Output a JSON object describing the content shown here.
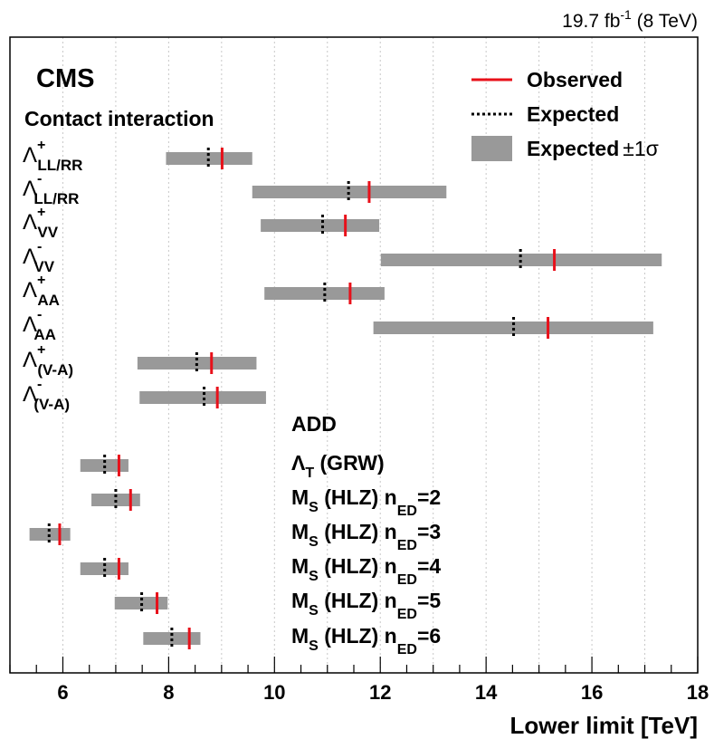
{
  "chart_data": {
    "type": "bar",
    "title": "",
    "header_text": "19.7 fb",
    "header_sup": "-1",
    "header_suffix": " (8 TeV)",
    "experiment_label": "CMS",
    "xlabel": "Lower limit [TeV]",
    "xlim": [
      5,
      18
    ],
    "x_ticks": [
      6,
      8,
      10,
      12,
      14,
      16,
      18
    ],
    "grid": "vertical-dotted",
    "legend_position": "top-right",
    "legend": [
      {
        "label": "Observed",
        "style": "solid",
        "color": "#e8101a"
      },
      {
        "label": "Expected",
        "style": "dashed",
        "color": "#000000"
      },
      {
        "label": "Expected",
        "suffix": "±1σ",
        "style": "band",
        "color": "#999999"
      }
    ],
    "groups": [
      {
        "title": "Contact interaction",
        "entries": [
          {
            "symbol": "Λ",
            "sup": "+",
            "sub": "LL/RR",
            "band": [
              7.95,
              9.58
            ],
            "expected": 8.75,
            "observed": 9.01
          },
          {
            "symbol": "Λ",
            "sup": "-",
            "sub": "LL/RR",
            "band": [
              9.58,
              13.25
            ],
            "expected": 11.4,
            "observed": 11.79
          },
          {
            "symbol": "Λ",
            "sup": "+",
            "sub": "VV",
            "band": [
              9.74,
              11.98
            ],
            "expected": 10.91,
            "observed": 11.34
          },
          {
            "symbol": "Λ",
            "sup": "-",
            "sub": "VV",
            "band": [
              12.01,
              17.32
            ],
            "expected": 14.65,
            "observed": 15.29
          },
          {
            "symbol": "Λ",
            "sup": "+",
            "sub": "AA",
            "band": [
              9.81,
              12.08
            ],
            "expected": 10.95,
            "observed": 11.43
          },
          {
            "symbol": "Λ",
            "sup": "-",
            "sub": "AA",
            "band": [
              11.87,
              17.16
            ],
            "expected": 14.52,
            "observed": 15.17
          },
          {
            "symbol": "Λ",
            "sup": "+",
            "sub": "(V-A)",
            "band": [
              7.41,
              9.66
            ],
            "expected": 8.53,
            "observed": 8.81
          },
          {
            "symbol": "Λ",
            "sup": "-",
            "sub": "(V-A)",
            "band": [
              7.45,
              9.84
            ],
            "expected": 8.67,
            "observed": 8.92
          }
        ]
      },
      {
        "title": "ADD",
        "entries": [
          {
            "label": "Λ",
            "sub": "T",
            "suffix": " (GRW)",
            "band": [
              6.33,
              7.24
            ],
            "expected": 6.79,
            "observed": 7.06
          },
          {
            "label": "M",
            "sub": "S",
            "suffix": " (HLZ) n",
            "sub2": "ED",
            "tail": "=2",
            "band": [
              6.54,
              7.46
            ],
            "expected": 7.0,
            "observed": 7.28
          },
          {
            "label": "M",
            "sub": "S",
            "suffix": " (HLZ) n",
            "sub2": "ED",
            "tail": "=3",
            "band": [
              5.37,
              6.14
            ],
            "expected": 5.74,
            "observed": 5.94
          },
          {
            "label": "M",
            "sub": "S",
            "suffix": " (HLZ) n",
            "sub2": "ED",
            "tail": "=4",
            "band": [
              6.33,
              7.24
            ],
            "expected": 6.79,
            "observed": 7.06
          },
          {
            "label": "M",
            "sub": "S",
            "suffix": " (HLZ) n",
            "sub2": "ED",
            "tail": "=5",
            "band": [
              6.98,
              7.98
            ],
            "expected": 7.49,
            "observed": 7.78
          },
          {
            "label": "M",
            "sub": "S",
            "suffix": " (HLZ) n",
            "sub2": "ED",
            "tail": "=6",
            "band": [
              7.52,
              8.6
            ],
            "expected": 8.06,
            "observed": 8.39
          }
        ]
      }
    ]
  }
}
